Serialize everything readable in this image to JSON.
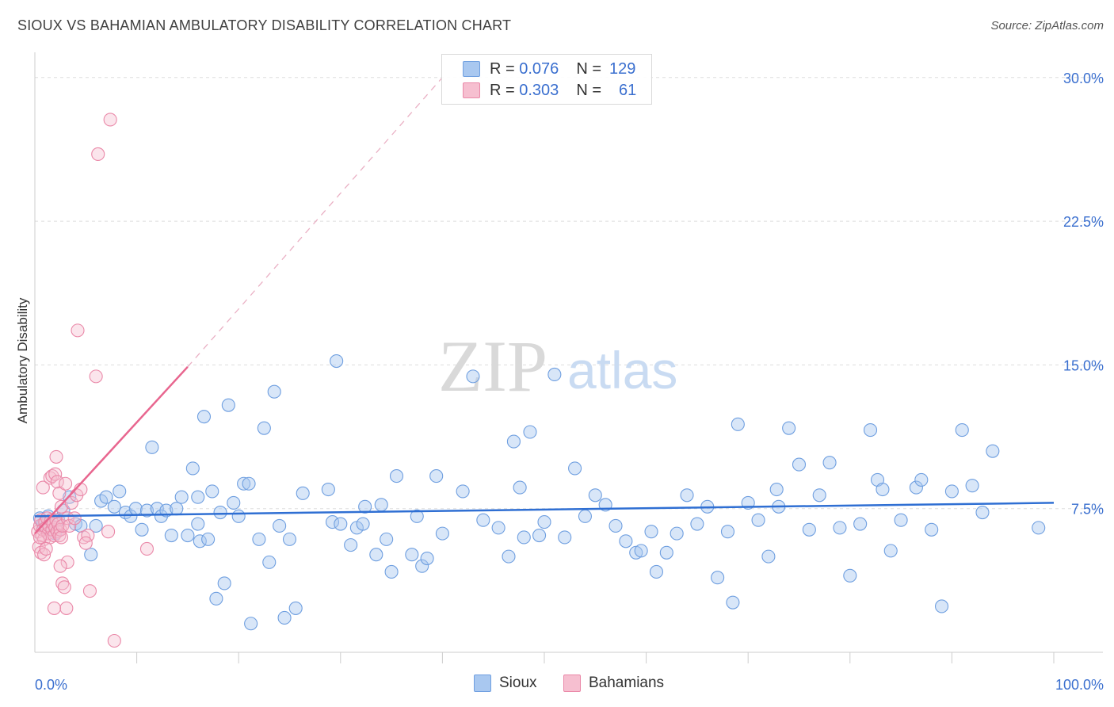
{
  "title": "SIOUX VS BAHAMIAN AMBULATORY DISABILITY CORRELATION CHART",
  "source": "Source: ZipAtlas.com",
  "watermark": {
    "zip": "ZIP",
    "atlas": "atlas"
  },
  "legend": {
    "rows": [
      {
        "r_label": "R =",
        "r_value": "0.076",
        "n_label": "N =",
        "n_value": "129",
        "color": "#a9c8f0",
        "border": "#6f9fe0"
      },
      {
        "r_label": "R =",
        "r_value": "0.303",
        "n_label": "N =",
        "n_value": "61",
        "color": "#f6bfd0",
        "border": "#ea88a8"
      }
    ]
  },
  "bottom_legend": [
    {
      "label": "Sioux",
      "color": "#a9c8f0",
      "border": "#6f9fe0"
    },
    {
      "label": "Bahamians",
      "color": "#f6bfd0",
      "border": "#ea88a8"
    }
  ],
  "chart_data": {
    "type": "scatter",
    "title": "SIOUX VS BAHAMIAN AMBULATORY DISABILITY CORRELATION CHART",
    "xlabel": "",
    "ylabel": "Ambulatory Disability",
    "xlim": [
      0,
      100
    ],
    "ylim": [
      0,
      30.9
    ],
    "x_tick_labels": [
      "0.0%",
      "100.0%"
    ],
    "y_ticks": [
      7.5,
      15.0,
      22.5,
      30.0
    ],
    "y_tick_labels": [
      "7.5%",
      "15.0%",
      "22.5%",
      "30.0%"
    ],
    "grid": true,
    "colors": {
      "sioux": "#6f9fe0",
      "bahamians": "#ea88a8",
      "sioux_line": "#2f6fd3",
      "bahamians_line": "#e8668f",
      "tick_label": "#3a6fcf"
    },
    "series": [
      {
        "name": "Sioux",
        "trend": {
          "x0": 0,
          "y0": 7.1,
          "x1": 100,
          "y1": 7.8
        },
        "points": [
          [
            0.5,
            7.0
          ],
          [
            0.8,
            6.7
          ],
          [
            1.0,
            6.5
          ],
          [
            1.3,
            7.1
          ],
          [
            1.6,
            6.6
          ],
          [
            2.0,
            6.2
          ],
          [
            2.3,
            6.9
          ],
          [
            2.8,
            7.4
          ],
          [
            3.4,
            8.1
          ],
          [
            4.0,
            6.7
          ],
          [
            4.5,
            6.6
          ],
          [
            5.5,
            5.1
          ],
          [
            6.0,
            6.6
          ],
          [
            6.5,
            7.9
          ],
          [
            7.0,
            8.1
          ],
          [
            7.8,
            7.6
          ],
          [
            8.3,
            8.4
          ],
          [
            8.9,
            7.3
          ],
          [
            9.4,
            7.1
          ],
          [
            9.9,
            7.5
          ],
          [
            10.5,
            6.4
          ],
          [
            11.0,
            7.4
          ],
          [
            11.5,
            10.7
          ],
          [
            12.0,
            7.5
          ],
          [
            12.4,
            7.1
          ],
          [
            12.9,
            7.4
          ],
          [
            13.4,
            6.1
          ],
          [
            13.9,
            7.5
          ],
          [
            14.4,
            8.1
          ],
          [
            15.0,
            6.1
          ],
          [
            15.5,
            9.6
          ],
          [
            16.0,
            8.1
          ],
          [
            16.0,
            6.7
          ],
          [
            16.2,
            5.8
          ],
          [
            16.6,
            12.3
          ],
          [
            17.0,
            5.9
          ],
          [
            17.4,
            8.4
          ],
          [
            17.8,
            2.8
          ],
          [
            18.2,
            7.3
          ],
          [
            18.6,
            3.6
          ],
          [
            19.0,
            12.9
          ],
          [
            19.5,
            7.8
          ],
          [
            20.0,
            7.1
          ],
          [
            20.5,
            8.8
          ],
          [
            21.0,
            8.8
          ],
          [
            21.2,
            1.5
          ],
          [
            22.0,
            5.9
          ],
          [
            22.5,
            11.7
          ],
          [
            23.0,
            4.7
          ],
          [
            23.5,
            13.6
          ],
          [
            24.0,
            6.6
          ],
          [
            24.5,
            1.8
          ],
          [
            25.0,
            5.9
          ],
          [
            25.6,
            2.3
          ],
          [
            26.3,
            8.3
          ],
          [
            28.8,
            8.5
          ],
          [
            29.2,
            6.8
          ],
          [
            29.6,
            15.2
          ],
          [
            30.0,
            6.7
          ],
          [
            31.0,
            5.6
          ],
          [
            31.6,
            6.5
          ],
          [
            32.2,
            6.7
          ],
          [
            32.4,
            7.6
          ],
          [
            33.5,
            5.1
          ],
          [
            34.0,
            7.7
          ],
          [
            34.5,
            5.9
          ],
          [
            35.0,
            4.2
          ],
          [
            35.5,
            9.2
          ],
          [
            37.0,
            5.1
          ],
          [
            37.5,
            7.1
          ],
          [
            38.0,
            4.5
          ],
          [
            38.5,
            4.9
          ],
          [
            39.4,
            9.2
          ],
          [
            40.0,
            6.2
          ],
          [
            42.0,
            8.4
          ],
          [
            43.0,
            14.4
          ],
          [
            44.0,
            6.9
          ],
          [
            45.5,
            6.5
          ],
          [
            46.5,
            5.0
          ],
          [
            47.0,
            11.0
          ],
          [
            47.6,
            8.6
          ],
          [
            48.0,
            6.0
          ],
          [
            48.6,
            11.5
          ],
          [
            49.5,
            6.1
          ],
          [
            50.0,
            6.8
          ],
          [
            51.0,
            14.5
          ],
          [
            52.0,
            6.0
          ],
          [
            53.0,
            9.6
          ],
          [
            54.0,
            7.1
          ],
          [
            55.0,
            8.2
          ],
          [
            56.0,
            7.7
          ],
          [
            57.0,
            6.6
          ],
          [
            58.0,
            5.8
          ],
          [
            59.0,
            5.2
          ],
          [
            59.5,
            5.3
          ],
          [
            60.5,
            6.3
          ],
          [
            61.0,
            4.2
          ],
          [
            62.0,
            5.2
          ],
          [
            63.0,
            6.2
          ],
          [
            64.0,
            8.2
          ],
          [
            65.0,
            6.7
          ],
          [
            66.0,
            7.6
          ],
          [
            67.0,
            3.9
          ],
          [
            68.0,
            6.3
          ],
          [
            68.5,
            2.6
          ],
          [
            69.0,
            11.9
          ],
          [
            70.0,
            7.8
          ],
          [
            71.0,
            6.9
          ],
          [
            72.0,
            5.0
          ],
          [
            72.8,
            8.5
          ],
          [
            73.0,
            7.6
          ],
          [
            74.0,
            11.7
          ],
          [
            75.0,
            9.8
          ],
          [
            76.0,
            6.4
          ],
          [
            77.0,
            8.2
          ],
          [
            78.0,
            9.9
          ],
          [
            79.0,
            6.5
          ],
          [
            80.0,
            4.0
          ],
          [
            81.0,
            6.7
          ],
          [
            82.0,
            11.6
          ],
          [
            82.7,
            9.0
          ],
          [
            83.2,
            8.5
          ],
          [
            84.0,
            5.3
          ],
          [
            85.0,
            6.9
          ],
          [
            86.5,
            8.6
          ],
          [
            87.0,
            9.0
          ],
          [
            88.0,
            6.4
          ],
          [
            89.0,
            2.4
          ],
          [
            90.0,
            8.4
          ],
          [
            91.0,
            11.6
          ],
          [
            92.0,
            8.7
          ],
          [
            93.0,
            7.3
          ],
          [
            94.0,
            10.5
          ],
          [
            98.5,
            6.5
          ]
        ]
      },
      {
        "name": "Bahamians",
        "trend": {
          "x0": 0,
          "y0": 6.2,
          "x1": 15,
          "y1": 14.9,
          "dash_to": {
            "x": 40,
            "y": 30.0
          }
        },
        "points": [
          [
            0.3,
            6.3
          ],
          [
            0.5,
            6.6
          ],
          [
            0.6,
            6.9
          ],
          [
            0.7,
            6.1
          ],
          [
            0.8,
            6.4
          ],
          [
            0.9,
            5.9
          ],
          [
            1.0,
            6.8
          ],
          [
            1.1,
            6.5
          ],
          [
            1.2,
            7.0
          ],
          [
            1.3,
            6.2
          ],
          [
            1.4,
            6.6
          ],
          [
            1.5,
            6.0
          ],
          [
            1.6,
            6.9
          ],
          [
            1.7,
            6.4
          ],
          [
            1.8,
            6.7
          ],
          [
            1.9,
            6.1
          ],
          [
            2.0,
            6.5
          ],
          [
            2.1,
            6.9
          ],
          [
            2.2,
            6.3
          ],
          [
            2.3,
            6.7
          ],
          [
            2.4,
            6.1
          ],
          [
            2.5,
            6.4
          ],
          [
            2.6,
            6.0
          ],
          [
            2.7,
            6.6
          ],
          [
            0.4,
            5.5
          ],
          [
            0.6,
            5.2
          ],
          [
            0.9,
            5.1
          ],
          [
            1.1,
            5.4
          ],
          [
            0.8,
            8.6
          ],
          [
            1.5,
            9.1
          ],
          [
            1.7,
            9.2
          ],
          [
            2.0,
            9.3
          ],
          [
            2.2,
            8.9
          ],
          [
            2.4,
            8.3
          ],
          [
            2.6,
            7.6
          ],
          [
            2.1,
            10.2
          ],
          [
            3.0,
            8.8
          ],
          [
            3.2,
            7.0
          ],
          [
            3.4,
            6.6
          ],
          [
            3.6,
            7.8
          ],
          [
            4.1,
            8.2
          ],
          [
            4.5,
            8.5
          ],
          [
            4.8,
            6.0
          ],
          [
            5.2,
            6.1
          ],
          [
            5.0,
            5.7
          ],
          [
            2.7,
            3.6
          ],
          [
            2.9,
            3.4
          ],
          [
            3.2,
            4.7
          ],
          [
            2.5,
            4.5
          ],
          [
            3.1,
            2.3
          ],
          [
            5.4,
            3.2
          ],
          [
            4.2,
            16.8
          ],
          [
            6.0,
            14.4
          ],
          [
            6.2,
            26.0
          ],
          [
            7.4,
            27.8
          ],
          [
            7.8,
            0.6
          ],
          [
            11.0,
            5.4
          ],
          [
            7.2,
            6.3
          ],
          [
            3.9,
            7.0
          ],
          [
            1.9,
            2.3
          ],
          [
            0.5,
            6.0
          ]
        ]
      }
    ]
  }
}
